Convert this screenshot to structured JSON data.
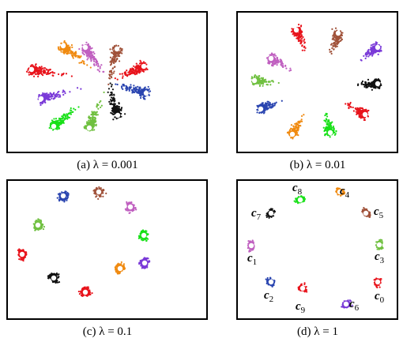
{
  "figure": {
    "panels": [
      {
        "caption": "(a)  λ = 0.001"
      },
      {
        "caption": "(b)  λ = 0.01"
      },
      {
        "caption": "(c)  λ = 0.1"
      },
      {
        "caption": "(d)  λ = 1",
        "labels": [
          {
            "base": "c",
            "sub": "8"
          },
          {
            "base": "c",
            "sub": "4"
          },
          {
            "base": "c",
            "sub": "7"
          },
          {
            "base": "c",
            "sub": "5"
          },
          {
            "base": "c",
            "sub": "1"
          },
          {
            "base": "c",
            "sub": "3"
          },
          {
            "base": "c",
            "sub": "2"
          },
          {
            "base": "c",
            "sub": "9"
          },
          {
            "base": "c",
            "sub": "6"
          },
          {
            "base": "c",
            "sub": "0"
          }
        ]
      }
    ]
  }
}
